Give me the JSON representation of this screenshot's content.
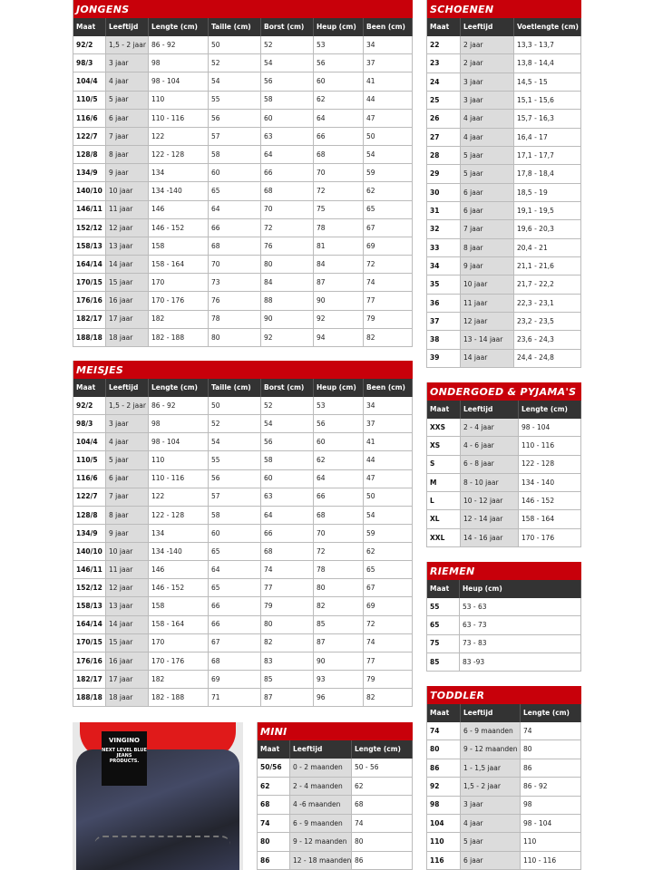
{
  "colors": {
    "title_bg": "#c8000a",
    "header_bg": "#333333",
    "age_column_shade": "#dcdcdc"
  },
  "tables": [
    {
      "id": "jongens",
      "title": "JONGENS",
      "shade_col": 1,
      "headers": [
        "Maat",
        "Leeftijd",
        "Lengte (cm)",
        "Taille (cm)",
        "Borst (cm)",
        "Heup (cm)",
        "Been (cm)"
      ],
      "rows": [
        [
          "92/2",
          "1,5 - 2 jaar",
          "86 - 92",
          "50",
          "52",
          "53",
          "34"
        ],
        [
          "98/3",
          "3 jaar",
          "98",
          "52",
          "54",
          "56",
          "37"
        ],
        [
          "104/4",
          "4 jaar",
          "98 - 104",
          "54",
          "56",
          "60",
          "41"
        ],
        [
          "110/5",
          "5 jaar",
          "110",
          "55",
          "58",
          "62",
          "44"
        ],
        [
          "116/6",
          "6 jaar",
          "110 - 116",
          "56",
          "60",
          "64",
          "47"
        ],
        [
          "122/7",
          "7 jaar",
          "122",
          "57",
          "63",
          "66",
          "50"
        ],
        [
          "128/8",
          "8 jaar",
          "122 - 128",
          "58",
          "64",
          "68",
          "54"
        ],
        [
          "134/9",
          "9 jaar",
          "134",
          "60",
          "66",
          "70",
          "59"
        ],
        [
          "140/10",
          "10 jaar",
          "134 -140",
          "65",
          "68",
          "72",
          "62"
        ],
        [
          "146/11",
          "11 jaar",
          "146",
          "64",
          "70",
          "75",
          "65"
        ],
        [
          "152/12",
          "12 jaar",
          "146 - 152",
          "66",
          "72",
          "78",
          "67"
        ],
        [
          "158/13",
          "13 jaar",
          "158",
          "68",
          "76",
          "81",
          "69"
        ],
        [
          "164/14",
          "14 jaar",
          "158 - 164",
          "70",
          "80",
          "84",
          "72"
        ],
        [
          "170/15",
          "15 jaar",
          "170",
          "73",
          "84",
          "87",
          "74"
        ],
        [
          "176/16",
          "16 jaar",
          "170 - 176",
          "76",
          "88",
          "90",
          "77"
        ],
        [
          "182/17",
          "17 jaar",
          "182",
          "78",
          "90",
          "92",
          "79"
        ],
        [
          "188/18",
          "18 jaar",
          "182 - 188",
          "80",
          "92",
          "94",
          "82"
        ]
      ]
    },
    {
      "id": "meisjes",
      "title": "MEISJES",
      "shade_col": 1,
      "headers": [
        "Maat",
        "Leeftijd",
        "Lengte (cm)",
        "Taille (cm)",
        "Borst (cm)",
        "Heup (cm)",
        "Been (cm)"
      ],
      "rows": [
        [
          "92/2",
          "1,5 - 2 jaar",
          "86 - 92",
          "50",
          "52",
          "53",
          "34"
        ],
        [
          "98/3",
          "3 jaar",
          "98",
          "52",
          "54",
          "56",
          "37"
        ],
        [
          "104/4",
          "4 jaar",
          "98 - 104",
          "54",
          "56",
          "60",
          "41"
        ],
        [
          "110/5",
          "5 jaar",
          "110",
          "55",
          "58",
          "62",
          "44"
        ],
        [
          "116/6",
          "6 jaar",
          "110 - 116",
          "56",
          "60",
          "64",
          "47"
        ],
        [
          "122/7",
          "7 jaar",
          "122",
          "57",
          "63",
          "66",
          "50"
        ],
        [
          "128/8",
          "8 jaar",
          "122 - 128",
          "58",
          "64",
          "68",
          "54"
        ],
        [
          "134/9",
          "9 jaar",
          "134",
          "60",
          "66",
          "70",
          "59"
        ],
        [
          "140/10",
          "10 jaar",
          "134 -140",
          "65",
          "68",
          "72",
          "62"
        ],
        [
          "146/11",
          "11 jaar",
          "146",
          "64",
          "74",
          "78",
          "65"
        ],
        [
          "152/12",
          "12 jaar",
          "146 - 152",
          "65",
          "77",
          "80",
          "67"
        ],
        [
          "158/13",
          "13 jaar",
          "158",
          "66",
          "79",
          "82",
          "69"
        ],
        [
          "164/14",
          "14 jaar",
          "158 - 164",
          "66",
          "80",
          "85",
          "72"
        ],
        [
          "170/15",
          "15 jaar",
          "170",
          "67",
          "82",
          "87",
          "74"
        ],
        [
          "176/16",
          "16 jaar",
          "170 - 176",
          "68",
          "83",
          "90",
          "77"
        ],
        [
          "182/17",
          "17 jaar",
          "182",
          "69",
          "85",
          "93",
          "79"
        ],
        [
          "188/18",
          "18 jaar",
          "182 - 188",
          "71",
          "87",
          "96",
          "82"
        ]
      ]
    },
    {
      "id": "mini",
      "title": "MINI",
      "shade_col": 1,
      "headers": [
        "Maat",
        "Leeftijd",
        "Lengte (cm)"
      ],
      "rows": [
        [
          "50/56",
          "0 - 2 maanden",
          "50 - 56"
        ],
        [
          "62",
          "2 - 4 maanden",
          "62"
        ],
        [
          "68",
          "4 -6 maanden",
          "68"
        ],
        [
          "74",
          "6 - 9 maanden",
          "74"
        ],
        [
          "80",
          "9 - 12 maanden",
          "80"
        ],
        [
          "86",
          "12 - 18 maanden",
          "86"
        ]
      ]
    },
    {
      "id": "schoenen",
      "title": "SCHOENEN",
      "shade_col": 1,
      "headers": [
        "Maat",
        "Leeftijd",
        "Voetlengte (cm)"
      ],
      "rows": [
        [
          "22",
          "2 jaar",
          "13,3 - 13,7"
        ],
        [
          "23",
          "2 jaar",
          "13,8 - 14,4"
        ],
        [
          "24",
          "3 jaar",
          "14,5 - 15"
        ],
        [
          "25",
          "3 jaar",
          "15,1 - 15,6"
        ],
        [
          "26",
          "4 jaar",
          "15,7 - 16,3"
        ],
        [
          "27",
          "4 jaar",
          "16,4 - 17"
        ],
        [
          "28",
          "5 jaar",
          "17,1 - 17,7"
        ],
        [
          "29",
          "5 jaar",
          "17,8 - 18,4"
        ],
        [
          "30",
          "6 jaar",
          "18,5 - 19"
        ],
        [
          "31",
          "6 jaar",
          "19,1 - 19,5"
        ],
        [
          "32",
          "7 jaar",
          "19,6 - 20,3"
        ],
        [
          "33",
          "8 jaar",
          "20,4 - 21"
        ],
        [
          "34",
          "9 jaar",
          "21,1 - 21,6"
        ],
        [
          "35",
          "10 jaar",
          "21,7 - 22,2"
        ],
        [
          "36",
          "11 jaar",
          "22,3 - 23,1"
        ],
        [
          "37",
          "12 jaar",
          "23,2 - 23,5"
        ],
        [
          "38",
          "13 - 14 jaar",
          "23,6 - 24,3"
        ],
        [
          "39",
          "14 jaar",
          "24,4 - 24,8"
        ]
      ]
    },
    {
      "id": "ondergoed",
      "title": "ONDERGOED & PYJAMA'S",
      "shade_col": 1,
      "headers": [
        "Maat",
        "Leeftijd",
        "Lengte (cm)"
      ],
      "rows": [
        [
          "XXS",
          "2 - 4 jaar",
          "98 - 104"
        ],
        [
          "XS",
          "4 - 6 jaar",
          "110 - 116"
        ],
        [
          "S",
          "6 - 8 jaar",
          "122 - 128"
        ],
        [
          "M",
          "8 - 10 jaar",
          "134 - 140"
        ],
        [
          "L",
          "10 - 12 jaar",
          "146 - 152"
        ],
        [
          "XL",
          "12 - 14 jaar",
          "158 - 164"
        ],
        [
          "XXL",
          "14 - 16 jaar",
          "170 - 176"
        ]
      ]
    },
    {
      "id": "riemen",
      "title": "RIEMEN",
      "shade_col": -1,
      "headers": [
        "Maat",
        "Heup (cm)"
      ],
      "rows": [
        [
          "55",
          "53 - 63"
        ],
        [
          "65",
          "63 - 73"
        ],
        [
          "75",
          " 73 - 83"
        ],
        [
          "85",
          "83 -93"
        ]
      ]
    },
    {
      "id": "toddler",
      "title": "TODDLER",
      "shade_col": 1,
      "headers": [
        "Maat",
        "Leeftijd",
        "Lengte (cm)"
      ],
      "rows": [
        [
          "74",
          "6 - 9 maanden",
          "74"
        ],
        [
          "80",
          "9 - 12 maanden",
          "80"
        ],
        [
          "86",
          "1 - 1,5 jaar",
          "86"
        ],
        [
          "92",
          "1,5 - 2 jaar",
          "86 - 92"
        ],
        [
          "98",
          "3 jaar",
          "98"
        ],
        [
          "104",
          "4 jaar",
          "98 - 104"
        ],
        [
          "110",
          "5 jaar",
          "110"
        ],
        [
          "116",
          "6 jaar",
          "110 - 116"
        ]
      ]
    }
  ],
  "photo": {
    "logo_brand": "VINGINO",
    "logo_tagline": "NEXT LEVEL BLUE JEANS PRODUCTS."
  }
}
